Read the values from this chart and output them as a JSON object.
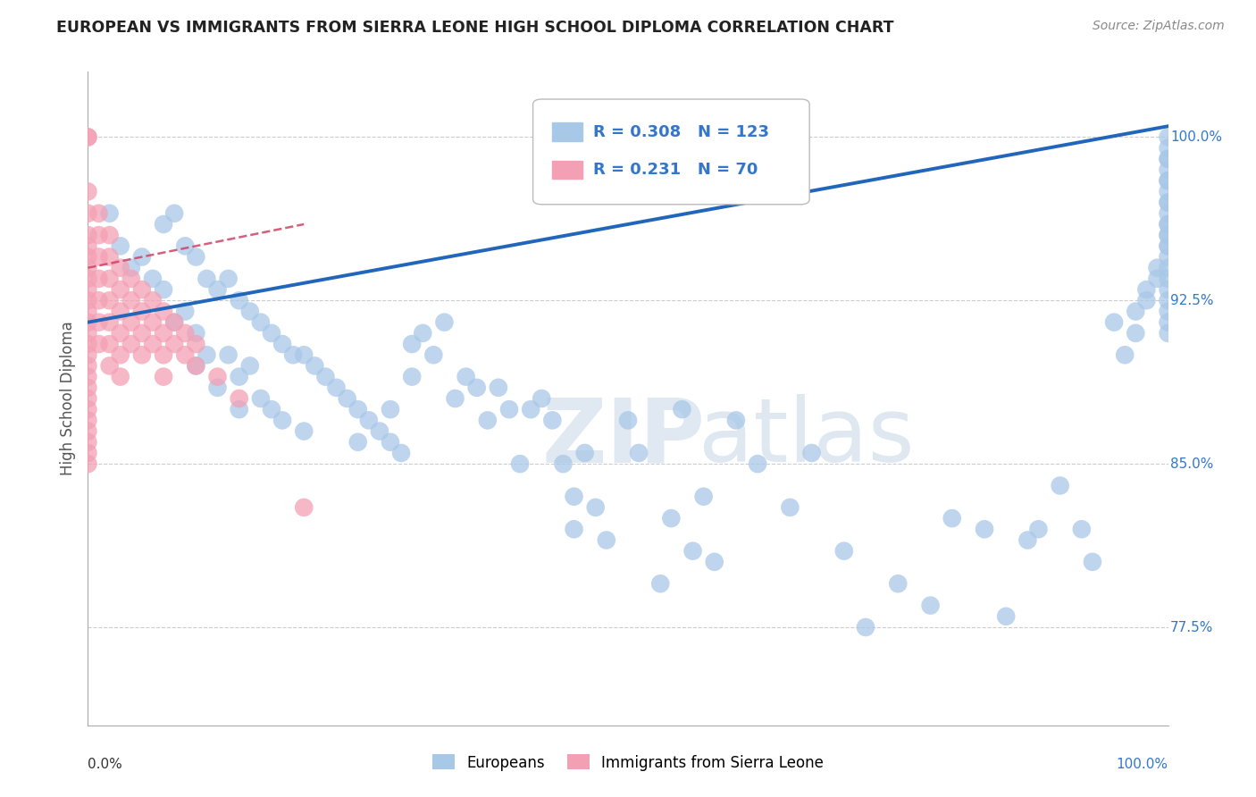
{
  "title": "EUROPEAN VS IMMIGRANTS FROM SIERRA LEONE HIGH SCHOOL DIPLOMA CORRELATION CHART",
  "source": "Source: ZipAtlas.com",
  "ylabel": "High School Diploma",
  "legend_blue": "Europeans",
  "legend_pink": "Immigrants from Sierra Leone",
  "r_european": 0.308,
  "n_european": 123,
  "r_sierra": 0.231,
  "n_sierra": 70,
  "blue_scatter_color": "#a8c8e8",
  "pink_scatter_color": "#f4a0b4",
  "blue_line_color": "#2266bb",
  "pink_line_color": "#cc4466",
  "legend_text_color": "#3377cc",
  "ytick_color": "#3377cc",
  "watermark_zip": "ZIP",
  "watermark_atlas": "atlas",
  "background_color": "#ffffff",
  "xmin": 0.0,
  "xmax": 1.0,
  "ymin": 73.0,
  "ymax": 103.0,
  "ytick_vals": [
    77.5,
    85.0,
    92.5,
    100.0
  ],
  "blue_scatter_x": [
    0.02,
    0.03,
    0.04,
    0.05,
    0.06,
    0.07,
    0.07,
    0.08,
    0.08,
    0.09,
    0.09,
    0.1,
    0.1,
    0.1,
    0.11,
    0.11,
    0.12,
    0.12,
    0.13,
    0.13,
    0.14,
    0.14,
    0.14,
    0.15,
    0.15,
    0.16,
    0.16,
    0.17,
    0.17,
    0.18,
    0.18,
    0.19,
    0.2,
    0.2,
    0.21,
    0.22,
    0.23,
    0.24,
    0.25,
    0.25,
    0.26,
    0.27,
    0.28,
    0.28,
    0.29,
    0.3,
    0.3,
    0.31,
    0.32,
    0.33,
    0.34,
    0.35,
    0.36,
    0.37,
    0.38,
    0.39,
    0.4,
    0.41,
    0.42,
    0.43,
    0.44,
    0.45,
    0.45,
    0.46,
    0.47,
    0.48,
    0.5,
    0.51,
    0.53,
    0.54,
    0.55,
    0.56,
    0.57,
    0.58,
    0.6,
    0.62,
    0.65,
    0.67,
    0.7,
    0.72,
    0.75,
    0.78,
    0.8,
    0.83,
    0.85,
    0.87,
    0.88,
    0.9,
    0.92,
    0.93,
    0.95,
    0.96,
    0.97,
    0.97,
    0.98,
    0.98,
    0.99,
    0.99,
    1.0,
    1.0,
    1.0,
    1.0,
    1.0,
    1.0,
    1.0,
    1.0,
    1.0,
    1.0,
    1.0,
    1.0,
    1.0,
    1.0,
    1.0,
    1.0,
    1.0,
    1.0,
    1.0,
    1.0,
    1.0,
    1.0,
    1.0,
    1.0,
    1.0
  ],
  "blue_scatter_y": [
    96.5,
    95.0,
    94.0,
    94.5,
    93.5,
    96.0,
    93.0,
    96.5,
    91.5,
    95.0,
    92.0,
    94.5,
    91.0,
    89.5,
    93.5,
    90.0,
    93.0,
    88.5,
    93.5,
    90.0,
    92.5,
    89.0,
    87.5,
    92.0,
    89.5,
    91.5,
    88.0,
    91.0,
    87.5,
    90.5,
    87.0,
    90.0,
    90.0,
    86.5,
    89.5,
    89.0,
    88.5,
    88.0,
    87.5,
    86.0,
    87.0,
    86.5,
    87.5,
    86.0,
    85.5,
    90.5,
    89.0,
    91.0,
    90.0,
    91.5,
    88.0,
    89.0,
    88.5,
    87.0,
    88.5,
    87.5,
    85.0,
    87.5,
    88.0,
    87.0,
    85.0,
    83.5,
    82.0,
    85.5,
    83.0,
    81.5,
    87.0,
    85.5,
    79.5,
    82.5,
    87.5,
    81.0,
    83.5,
    80.5,
    87.0,
    85.0,
    83.0,
    85.5,
    81.0,
    77.5,
    79.5,
    78.5,
    82.5,
    82.0,
    78.0,
    81.5,
    82.0,
    84.0,
    82.0,
    80.5,
    91.5,
    90.0,
    92.0,
    91.0,
    93.0,
    92.5,
    94.0,
    93.5,
    95.0,
    94.5,
    96.0,
    95.5,
    97.0,
    96.5,
    98.0,
    97.5,
    99.0,
    98.5,
    100.0,
    99.5,
    98.0,
    97.0,
    96.0,
    95.5,
    95.0,
    94.0,
    93.5,
    93.0,
    92.5,
    92.0,
    91.5,
    91.0,
    99.0
  ],
  "pink_scatter_x": [
    0.0,
    0.0,
    0.0,
    0.0,
    0.0,
    0.0,
    0.0,
    0.0,
    0.0,
    0.0,
    0.0,
    0.0,
    0.0,
    0.0,
    0.0,
    0.0,
    0.0,
    0.0,
    0.0,
    0.0,
    0.0,
    0.0,
    0.0,
    0.0,
    0.0,
    0.0,
    0.01,
    0.01,
    0.01,
    0.01,
    0.01,
    0.01,
    0.01,
    0.02,
    0.02,
    0.02,
    0.02,
    0.02,
    0.02,
    0.02,
    0.03,
    0.03,
    0.03,
    0.03,
    0.03,
    0.03,
    0.04,
    0.04,
    0.04,
    0.04,
    0.05,
    0.05,
    0.05,
    0.05,
    0.06,
    0.06,
    0.06,
    0.07,
    0.07,
    0.07,
    0.07,
    0.08,
    0.08,
    0.09,
    0.09,
    0.1,
    0.1,
    0.12,
    0.14,
    0.2
  ],
  "pink_scatter_y": [
    100.0,
    100.0,
    97.5,
    96.5,
    95.5,
    95.0,
    94.5,
    94.0,
    93.5,
    93.0,
    92.5,
    92.0,
    91.5,
    91.0,
    90.5,
    90.0,
    89.5,
    89.0,
    88.5,
    88.0,
    87.5,
    87.0,
    86.5,
    86.0,
    85.5,
    85.0,
    96.5,
    95.5,
    94.5,
    93.5,
    92.5,
    91.5,
    90.5,
    95.5,
    94.5,
    93.5,
    92.5,
    91.5,
    90.5,
    89.5,
    94.0,
    93.0,
    92.0,
    91.0,
    90.0,
    89.0,
    93.5,
    92.5,
    91.5,
    90.5,
    93.0,
    92.0,
    91.0,
    90.0,
    92.5,
    91.5,
    90.5,
    92.0,
    91.0,
    90.0,
    89.0,
    91.5,
    90.5,
    91.0,
    90.0,
    90.5,
    89.5,
    89.0,
    88.0,
    83.0
  ]
}
